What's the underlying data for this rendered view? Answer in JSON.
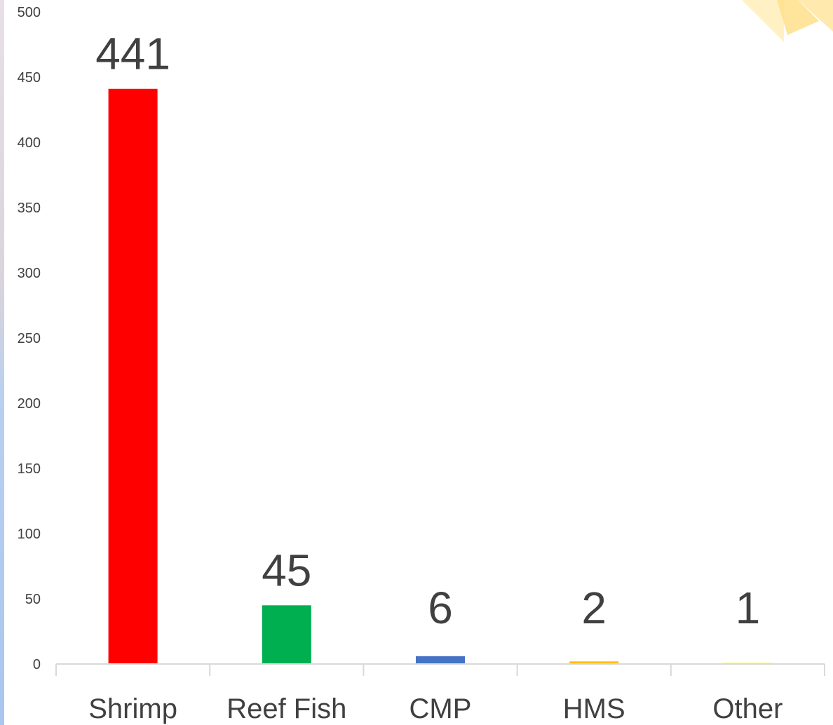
{
  "chart_data": {
    "type": "bar",
    "categories": [
      "Shrimp",
      "Reef Fish",
      "CMP",
      "HMS",
      "Other"
    ],
    "values": [
      441,
      45,
      6,
      2,
      1
    ],
    "data_labels": [
      "441",
      "45",
      "6",
      "2",
      "1"
    ],
    "bar_colors": [
      "#ff0000",
      "#00b050",
      "#4472c4",
      "#ffc000",
      "#ffff66"
    ],
    "ylim": [
      0,
      500
    ],
    "yticks": [
      0,
      50,
      100,
      150,
      200,
      250,
      300,
      350,
      400,
      450,
      500
    ],
    "ytick_labels": [
      "0",
      "50",
      "100",
      "150",
      "200",
      "250",
      "300",
      "350",
      "400",
      "450",
      "500"
    ],
    "grid": false,
    "legend": "none",
    "title": "",
    "xlabel": "",
    "ylabel": ""
  }
}
